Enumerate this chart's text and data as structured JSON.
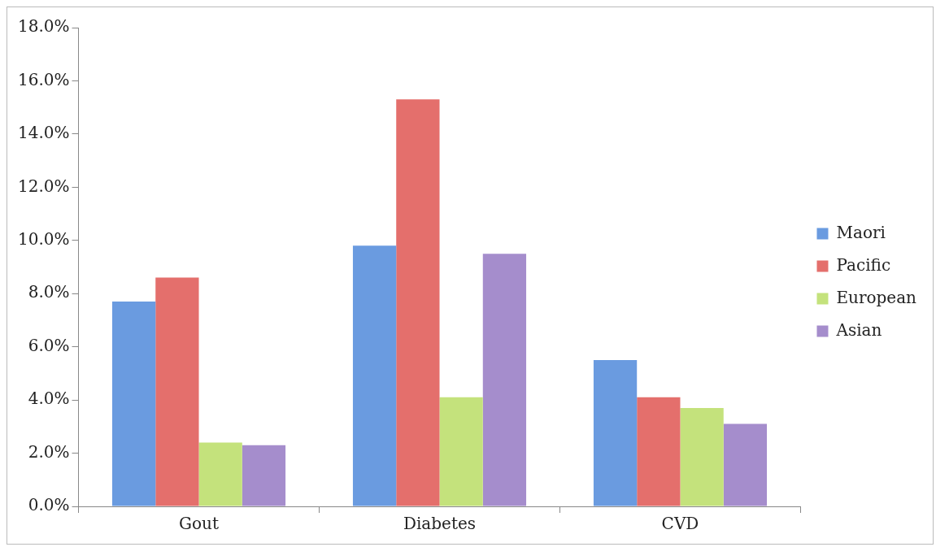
{
  "chart_data": {
    "type": "bar",
    "categories": [
      "Gout",
      "Diabetes",
      "CVD"
    ],
    "series": [
      {
        "name": "Maori",
        "color": "#6a9be0",
        "values": [
          7.7,
          9.8,
          5.5
        ]
      },
      {
        "name": "Pacific",
        "color": "#e46f6c",
        "values": [
          8.6,
          15.3,
          4.1
        ]
      },
      {
        "name": "European",
        "color": "#c4e27c",
        "values": [
          2.4,
          4.1,
          3.7
        ]
      },
      {
        "name": "Asian",
        "color": "#a58dcc",
        "values": [
          2.3,
          9.5,
          3.1
        ]
      }
    ],
    "ylim": [
      0,
      18
    ],
    "yticks": [
      {
        "value": 0,
        "label": "0.0%"
      },
      {
        "value": 2,
        "label": "2.0%"
      },
      {
        "value": 4,
        "label": "4.0%"
      },
      {
        "value": 6,
        "label": "6.0%"
      },
      {
        "value": 8,
        "label": "8.0%"
      },
      {
        "value": 10,
        "label": "10.0%"
      },
      {
        "value": 12,
        "label": "12.0%"
      },
      {
        "value": 14,
        "label": "14.0%"
      },
      {
        "value": 16,
        "label": "16.0%"
      },
      {
        "value": 18,
        "label": "18.0%"
      }
    ],
    "grid": false,
    "legend": "right"
  }
}
